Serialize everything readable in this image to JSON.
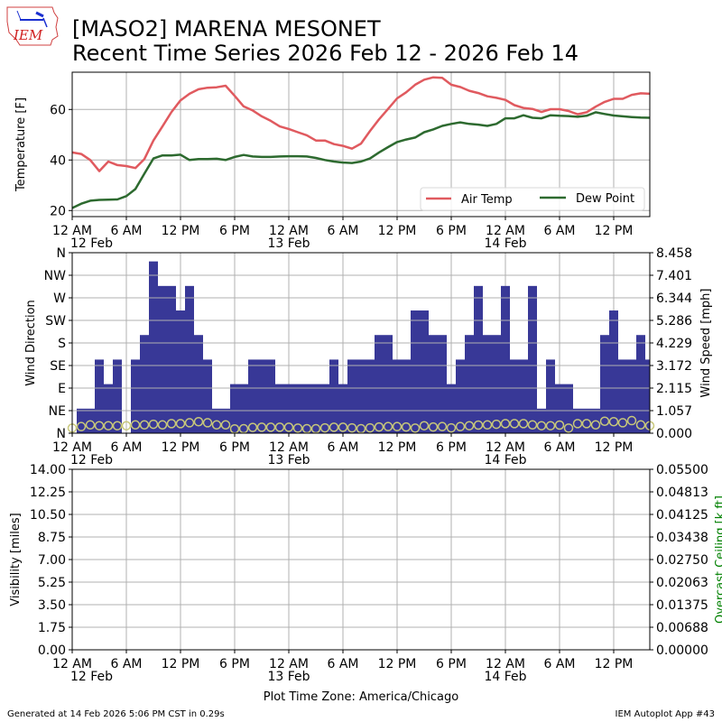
{
  "header": {
    "logo_text": "IEM",
    "title_line1": "[MASO2] MARENA MESONET",
    "title_line2": "Recent Time Series 2026 Feb 12 - 2026 Feb 14"
  },
  "footer": {
    "generated": "Generated at 14 Feb 2026 5:06 PM CST in 0.29s",
    "app": "IEM Autoplot App #43",
    "timezone_label": "Plot Time Zone: America/Chicago"
  },
  "colors": {
    "air_temp": "#e05a5f",
    "dew_point": "#2d6a2f",
    "wind_bar": "#383897",
    "marker": "#c8c87a",
    "grid": "#b0b0b0",
    "ceiling_label": "#008000"
  },
  "x_axis": {
    "hours_start": 0,
    "hours_end": 64,
    "tick_hours": [
      0,
      6,
      12,
      18,
      24,
      30,
      36,
      42,
      48,
      54,
      60
    ],
    "tick_labels": [
      "12 AM",
      "6 AM",
      "12 PM",
      "6 PM",
      "12 AM",
      "6 AM",
      "12 PM",
      "6 PM",
      "12 AM",
      "6 AM",
      "12 PM"
    ],
    "date_labels": [
      {
        "hour": 0,
        "label": "12 Feb"
      },
      {
        "hour": 24,
        "label": "13 Feb"
      },
      {
        "hour": 48,
        "label": "14 Feb"
      }
    ]
  },
  "chart_data": [
    {
      "type": "line",
      "ylabel": "Temperature [F]",
      "ylim": [
        17.6,
        74.75
      ],
      "yticks": [
        20,
        40,
        60
      ],
      "ytick_labels": [
        "20",
        "40",
        "60"
      ],
      "grid": true,
      "legend_position": "lower-right",
      "x_unit": "hours since 12 AM 12 Feb",
      "series": [
        {
          "name": "Air Temp",
          "key": "air_temp",
          "values": [
            43.0,
            42.4,
            40.0,
            35.6,
            39.4,
            38.0,
            37.6,
            36.8,
            40.4,
            47.7,
            53.3,
            59.0,
            63.6,
            66.2,
            68.0,
            68.6,
            68.8,
            69.4,
            65.4,
            61.2,
            59.6,
            57.3,
            55.5,
            53.3,
            52.3,
            51.0,
            49.8,
            47.7,
            47.7,
            46.3,
            45.6,
            44.5,
            46.5,
            51.5,
            56.1,
            60.2,
            64.4,
            66.8,
            69.8,
            71.8,
            72.7,
            72.5,
            69.8,
            68.9,
            67.4,
            66.5,
            65.2,
            64.6,
            63.8,
            61.7,
            60.6,
            60.2,
            59.0,
            60.1,
            60.1,
            59.4,
            58.1,
            58.9,
            61.1,
            63.0,
            64.2,
            64.2,
            65.8,
            66.4,
            66.2
          ]
        },
        {
          "name": "Dew Point",
          "key": "dew_point",
          "values": [
            21.0,
            22.7,
            23.9,
            24.2,
            24.3,
            24.4,
            25.7,
            28.5,
            34.6,
            40.6,
            41.8,
            41.8,
            42.1,
            40.0,
            40.4,
            40.4,
            40.5,
            40.0,
            41.2,
            42.0,
            41.4,
            41.2,
            41.2,
            41.4,
            41.5,
            41.5,
            41.4,
            40.8,
            40.0,
            39.4,
            39.0,
            38.8,
            39.4,
            40.6,
            43.0,
            45.1,
            47.1,
            48.1,
            48.9,
            51.0,
            52.1,
            53.5,
            54.3,
            54.9,
            54.3,
            54.0,
            53.5,
            54.3,
            56.5,
            56.5,
            57.7,
            56.7,
            56.5,
            57.7,
            57.5,
            57.4,
            57.1,
            57.5,
            58.9,
            58.2,
            57.6,
            57.3,
            57.0,
            56.8,
            56.7
          ]
        }
      ]
    },
    {
      "type": "bar",
      "ylabel_left": "Wind Direction",
      "ylabel_right": "Wind Speed [mph]",
      "ylim_left": [
        0,
        360
      ],
      "yticks_left_labels": [
        "N",
        "NE",
        "E",
        "SE",
        "S",
        "SW",
        "W",
        "NW",
        "N"
      ],
      "ylim_right": [
        0,
        8.458
      ],
      "yticks_right_labels": [
        "0.000",
        "1.057",
        "2.115",
        "3.172",
        "4.229",
        "5.286",
        "6.344",
        "7.401",
        "8.458"
      ],
      "grid": true,
      "bars_mph": [
        0,
        1.15,
        1.15,
        3.45,
        2.3,
        3.45,
        0,
        3.45,
        4.6,
        8.05,
        6.9,
        6.9,
        5.75,
        6.9,
        4.6,
        3.45,
        1.15,
        1.15,
        2.3,
        2.3,
        3.45,
        3.45,
        3.45,
        2.3,
        2.3,
        2.3,
        2.3,
        2.3,
        2.3,
        3.45,
        2.3,
        3.45,
        3.45,
        3.45,
        4.6,
        4.6,
        3.45,
        3.45,
        5.75,
        5.75,
        4.6,
        4.6,
        2.3,
        3.45,
        4.6,
        6.9,
        4.6,
        4.6,
        6.9,
        3.45,
        3.45,
        6.9,
        1.15,
        3.45,
        2.3,
        2.3,
        1.15,
        1.15,
        1.15,
        4.6,
        5.75,
        3.45,
        3.45,
        4.6,
        3.45
      ],
      "markers_mph": [
        0.24,
        0.31,
        0.39,
        0.35,
        0.35,
        0.35,
        0.35,
        0.39,
        0.39,
        0.42,
        0.39,
        0.45,
        0.45,
        0.49,
        0.54,
        0.49,
        0.39,
        0.39,
        0.2,
        0.21,
        0.27,
        0.28,
        0.28,
        0.28,
        0.28,
        0.24,
        0.21,
        0.21,
        0.25,
        0.28,
        0.28,
        0.25,
        0.21,
        0.25,
        0.29,
        0.31,
        0.31,
        0.29,
        0.24,
        0.35,
        0.29,
        0.31,
        0.25,
        0.31,
        0.35,
        0.38,
        0.39,
        0.42,
        0.45,
        0.45,
        0.45,
        0.39,
        0.35,
        0.35,
        0.38,
        0.24,
        0.45,
        0.45,
        0.39,
        0.56,
        0.54,
        0.49,
        0.59,
        0.39,
        0.35
      ]
    },
    {
      "type": "line",
      "ylabel_left": "Visibility [miles]",
      "ylabel_right": "Overcast Ceiling [k ft]",
      "ylim_left": [
        0,
        14
      ],
      "yticks_left_labels": [
        "0.00",
        "1.75",
        "3.50",
        "5.25",
        "7.00",
        "8.75",
        "10.50",
        "12.25",
        "14.00"
      ],
      "ylim_right": [
        0,
        0.055
      ],
      "yticks_right_labels": [
        "0.00000",
        "0.00688",
        "0.01375",
        "0.02063",
        "0.02750",
        "0.03438",
        "0.04125",
        "0.04813",
        "0.05500"
      ],
      "grid": true,
      "series": []
    }
  ]
}
